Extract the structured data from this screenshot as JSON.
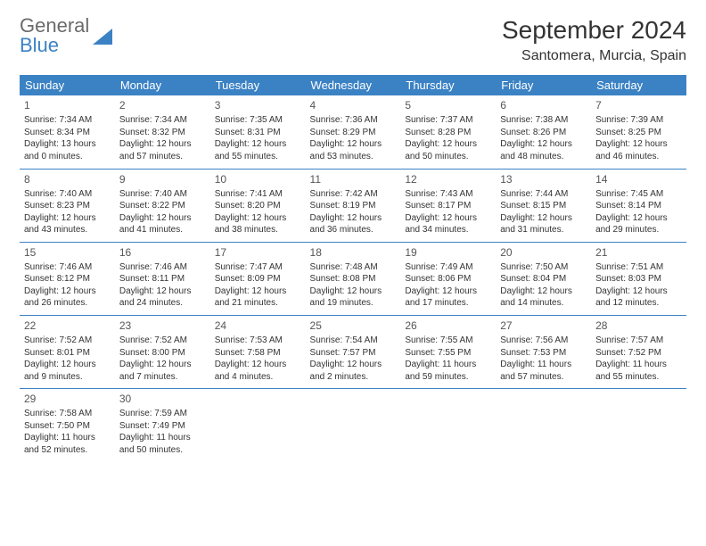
{
  "logo": {
    "top": "General",
    "bottom": "Blue"
  },
  "title": "September 2024",
  "location": "Santomera, Murcia, Spain",
  "colors": {
    "header_bg": "#3b82c4",
    "header_text": "#ffffff",
    "rule": "#3b82c4",
    "body_text": "#333333",
    "logo_gray": "#6b6b6b",
    "logo_blue": "#3b82c4",
    "page_bg": "#ffffff"
  },
  "dayHeaders": [
    "Sunday",
    "Monday",
    "Tuesday",
    "Wednesday",
    "Thursday",
    "Friday",
    "Saturday"
  ],
  "weeks": [
    [
      {
        "n": "1",
        "sr": "7:34 AM",
        "ss": "8:34 PM",
        "dl": "13 hours and 0 minutes."
      },
      {
        "n": "2",
        "sr": "7:34 AM",
        "ss": "8:32 PM",
        "dl": "12 hours and 57 minutes."
      },
      {
        "n": "3",
        "sr": "7:35 AM",
        "ss": "8:31 PM",
        "dl": "12 hours and 55 minutes."
      },
      {
        "n": "4",
        "sr": "7:36 AM",
        "ss": "8:29 PM",
        "dl": "12 hours and 53 minutes."
      },
      {
        "n": "5",
        "sr": "7:37 AM",
        "ss": "8:28 PM",
        "dl": "12 hours and 50 minutes."
      },
      {
        "n": "6",
        "sr": "7:38 AM",
        "ss": "8:26 PM",
        "dl": "12 hours and 48 minutes."
      },
      {
        "n": "7",
        "sr": "7:39 AM",
        "ss": "8:25 PM",
        "dl": "12 hours and 46 minutes."
      }
    ],
    [
      {
        "n": "8",
        "sr": "7:40 AM",
        "ss": "8:23 PM",
        "dl": "12 hours and 43 minutes."
      },
      {
        "n": "9",
        "sr": "7:40 AM",
        "ss": "8:22 PM",
        "dl": "12 hours and 41 minutes."
      },
      {
        "n": "10",
        "sr": "7:41 AM",
        "ss": "8:20 PM",
        "dl": "12 hours and 38 minutes."
      },
      {
        "n": "11",
        "sr": "7:42 AM",
        "ss": "8:19 PM",
        "dl": "12 hours and 36 minutes."
      },
      {
        "n": "12",
        "sr": "7:43 AM",
        "ss": "8:17 PM",
        "dl": "12 hours and 34 minutes."
      },
      {
        "n": "13",
        "sr": "7:44 AM",
        "ss": "8:15 PM",
        "dl": "12 hours and 31 minutes."
      },
      {
        "n": "14",
        "sr": "7:45 AM",
        "ss": "8:14 PM",
        "dl": "12 hours and 29 minutes."
      }
    ],
    [
      {
        "n": "15",
        "sr": "7:46 AM",
        "ss": "8:12 PM",
        "dl": "12 hours and 26 minutes."
      },
      {
        "n": "16",
        "sr": "7:46 AM",
        "ss": "8:11 PM",
        "dl": "12 hours and 24 minutes."
      },
      {
        "n": "17",
        "sr": "7:47 AM",
        "ss": "8:09 PM",
        "dl": "12 hours and 21 minutes."
      },
      {
        "n": "18",
        "sr": "7:48 AM",
        "ss": "8:08 PM",
        "dl": "12 hours and 19 minutes."
      },
      {
        "n": "19",
        "sr": "7:49 AM",
        "ss": "8:06 PM",
        "dl": "12 hours and 17 minutes."
      },
      {
        "n": "20",
        "sr": "7:50 AM",
        "ss": "8:04 PM",
        "dl": "12 hours and 14 minutes."
      },
      {
        "n": "21",
        "sr": "7:51 AM",
        "ss": "8:03 PM",
        "dl": "12 hours and 12 minutes."
      }
    ],
    [
      {
        "n": "22",
        "sr": "7:52 AM",
        "ss": "8:01 PM",
        "dl": "12 hours and 9 minutes."
      },
      {
        "n": "23",
        "sr": "7:52 AM",
        "ss": "8:00 PM",
        "dl": "12 hours and 7 minutes."
      },
      {
        "n": "24",
        "sr": "7:53 AM",
        "ss": "7:58 PM",
        "dl": "12 hours and 4 minutes."
      },
      {
        "n": "25",
        "sr": "7:54 AM",
        "ss": "7:57 PM",
        "dl": "12 hours and 2 minutes."
      },
      {
        "n": "26",
        "sr": "7:55 AM",
        "ss": "7:55 PM",
        "dl": "11 hours and 59 minutes."
      },
      {
        "n": "27",
        "sr": "7:56 AM",
        "ss": "7:53 PM",
        "dl": "11 hours and 57 minutes."
      },
      {
        "n": "28",
        "sr": "7:57 AM",
        "ss": "7:52 PM",
        "dl": "11 hours and 55 minutes."
      }
    ],
    [
      {
        "n": "29",
        "sr": "7:58 AM",
        "ss": "7:50 PM",
        "dl": "11 hours and 52 minutes."
      },
      {
        "n": "30",
        "sr": "7:59 AM",
        "ss": "7:49 PM",
        "dl": "11 hours and 50 minutes."
      },
      null,
      null,
      null,
      null,
      null
    ]
  ],
  "labels": {
    "sunrise": "Sunrise:",
    "sunset": "Sunset:",
    "daylight": "Daylight:"
  }
}
